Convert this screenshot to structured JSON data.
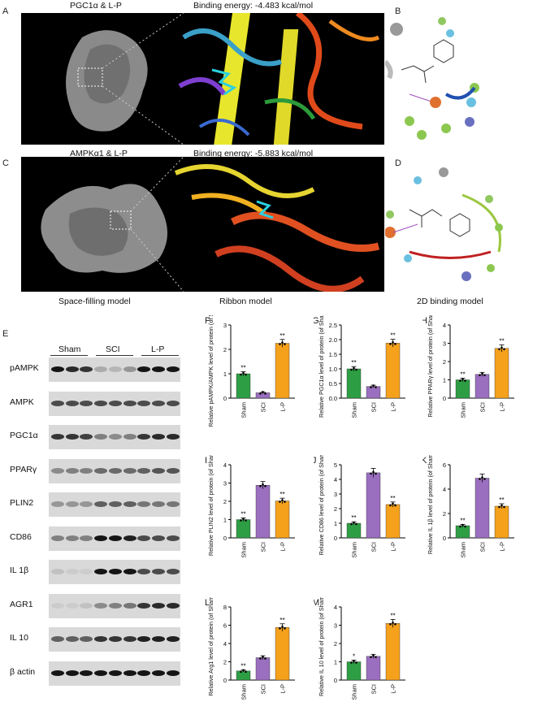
{
  "panels": {
    "A": "A",
    "B": "B",
    "C": "C",
    "D": "D",
    "E": "E",
    "F": "F",
    "G": "G",
    "H": "H",
    "I": "I",
    "J": "J",
    "K": "K",
    "L": "L",
    "M": "M"
  },
  "docking": {
    "a_title": "PGC1α & L-P",
    "a_energy": "Binding energy: -4.483 kcal/mol",
    "c_title": "AMPKα1 & L-P",
    "c_energy": "Binding energy: -5.883 kcal/mol",
    "caption_space": "Space-filling model",
    "caption_ribbon": "Ribbon model",
    "caption_2d": "2D binding model"
  },
  "western": {
    "groups": [
      "Sham",
      "SCI",
      "L-P"
    ],
    "proteins": [
      "pAMPK",
      "AMPK",
      "PGC1α",
      "PPARγ",
      "PLIN2",
      "CD86",
      "IL 1β",
      "AGR1",
      "IL 10",
      "β actin"
    ]
  },
  "colors": {
    "sham": "#2e9e44",
    "sci": "#9a6fbf",
    "lp": "#f5a11c"
  },
  "chart_data": [
    {
      "panel": "F",
      "type": "bar",
      "categories": [
        "Sham",
        "SCI",
        "L-P"
      ],
      "values": [
        1.0,
        0.22,
        2.25
      ],
      "sig": [
        "**",
        "",
        "**"
      ],
      "ylabel": "Relative pAMPK/AMPK level of protein (of Sham)",
      "ylim": [
        0,
        3
      ],
      "yticks": [
        "0",
        "1",
        "2",
        "3"
      ]
    },
    {
      "panel": "G",
      "type": "bar",
      "categories": [
        "Sham",
        "SCI",
        "L-P"
      ],
      "values": [
        1.0,
        0.4,
        1.88
      ],
      "sig": [
        "**",
        "",
        "**"
      ],
      "ylabel": "Relative PGC1α level of protein (of Sham)",
      "ylim": [
        0,
        2.5
      ],
      "yticks": [
        "0.0",
        "0.5",
        "1.0",
        "1.5",
        "2.0",
        "2.5"
      ]
    },
    {
      "panel": "H",
      "type": "bar",
      "categories": [
        "Sham",
        "SCI",
        "L-P"
      ],
      "values": [
        1.0,
        1.3,
        2.72
      ],
      "sig": [
        "**",
        "",
        "**"
      ],
      "ylabel": "Relative PPARγ level of protein (of Sham)",
      "ylim": [
        0,
        4
      ],
      "yticks": [
        "0",
        "1",
        "2",
        "3",
        "4"
      ]
    },
    {
      "panel": "I",
      "type": "bar",
      "categories": [
        "Sham",
        "SCI",
        "L-P"
      ],
      "values": [
        1.0,
        2.88,
        2.02
      ],
      "sig": [
        "**",
        "",
        "**"
      ],
      "ylabel": "Relative PLIN2 level of protein (of Sham)",
      "ylim": [
        0,
        4
      ],
      "yticks": [
        "0",
        "1",
        "2",
        "3",
        "4"
      ]
    },
    {
      "panel": "J",
      "type": "bar",
      "categories": [
        "Sham",
        "SCI",
        "L-P"
      ],
      "values": [
        1.0,
        4.45,
        2.28
      ],
      "sig": [
        "**",
        "",
        "**"
      ],
      "ylabel": "Relative CD86 level of protein (of Sham)",
      "ylim": [
        0,
        5
      ],
      "yticks": [
        "0",
        "1",
        "2",
        "3",
        "4",
        "5"
      ]
    },
    {
      "panel": "K",
      "type": "bar",
      "categories": [
        "Sham",
        "SCI",
        "L-P"
      ],
      "values": [
        1.0,
        4.9,
        2.6
      ],
      "sig": [
        "**",
        "",
        "**"
      ],
      "ylabel": "Relative IL 1β level of protein (of Sham)",
      "ylim": [
        0,
        6
      ],
      "yticks": [
        "0",
        "2",
        "4",
        "6"
      ]
    },
    {
      "panel": "L",
      "type": "bar",
      "categories": [
        "Sham",
        "SCI",
        "L-P"
      ],
      "values": [
        1.0,
        2.45,
        5.75
      ],
      "sig": [
        "**",
        "",
        "**"
      ],
      "ylabel": "Relative Arg1 level of protein (of Sham)",
      "ylim": [
        0,
        8
      ],
      "yticks": [
        "0",
        "2",
        "4",
        "6",
        "8"
      ]
    },
    {
      "panel": "M",
      "type": "bar",
      "categories": [
        "Sham",
        "SCI",
        "L-P"
      ],
      "values": [
        1.0,
        1.3,
        3.1
      ],
      "sig": [
        "*",
        "",
        "**"
      ],
      "ylabel": "Relative IL 10 level of protein (of Sham)",
      "ylim": [
        0,
        4
      ],
      "yticks": [
        "0",
        "1",
        "2",
        "3",
        "4"
      ]
    }
  ]
}
